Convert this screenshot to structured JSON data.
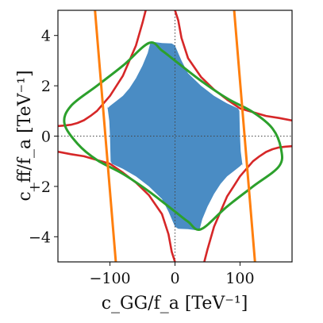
{
  "chart_data": {
    "type": "line",
    "xlabel": "c_GG/f_a [TeV⁻¹]",
    "ylabel": "c_ff/f_a [TeV⁻¹]",
    "xlim": [
      -180,
      180
    ],
    "ylim": [
      -5,
      5
    ],
    "x_ticks": [
      -100,
      0,
      100
    ],
    "x_tick_labels": [
      "−100",
      "0",
      "100"
    ],
    "y_ticks": [
      -4,
      -2,
      0,
      2,
      4
    ],
    "y_tick_labels": [
      "−4",
      "−2",
      "0",
      "2",
      "4"
    ],
    "reference_lines": {
      "x": 0,
      "y": 0,
      "style": "dotted"
    },
    "colors": {
      "region_fill": "#4a8cc4",
      "red": "#d62728",
      "green": "#2ca02c",
      "orange": "#ff7f0e"
    },
    "red_branch_left": [
      [
        -180,
        0.4
      ],
      [
        -170,
        0.42
      ],
      [
        -160,
        0.45
      ],
      [
        -150,
        0.52
      ],
      [
        -140,
        0.63
      ],
      [
        -130,
        0.8
      ],
      [
        -120,
        1.0
      ],
      [
        -110,
        1.3
      ],
      [
        -100,
        1.6
      ],
      [
        -90,
        2.0
      ],
      [
        -80,
        2.4
      ],
      [
        -70,
        3.0
      ],
      [
        -60,
        3.6
      ],
      [
        -50,
        4.5
      ],
      [
        -45,
        5.0
      ]
    ],
    "red_branch_top": [
      [
        0,
        5.0
      ],
      [
        5,
        4.6
      ],
      [
        10,
        3.9
      ],
      [
        20,
        3.1
      ],
      [
        40,
        2.35
      ],
      [
        60,
        1.85
      ],
      [
        80,
        1.45
      ],
      [
        100,
        1.1
      ],
      [
        120,
        0.95
      ],
      [
        140,
        0.8
      ],
      [
        160,
        0.72
      ],
      [
        180,
        0.62
      ]
    ],
    "red_branch_right": [
      [
        180,
        -0.4
      ],
      [
        170,
        -0.42
      ],
      [
        160,
        -0.45
      ],
      [
        150,
        -0.52
      ],
      [
        140,
        -0.63
      ],
      [
        130,
        -0.8
      ],
      [
        120,
        -1.0
      ],
      [
        110,
        -1.3
      ],
      [
        100,
        -1.6
      ],
      [
        90,
        -2.0
      ],
      [
        80,
        -2.4
      ],
      [
        70,
        -3.0
      ],
      [
        60,
        -3.6
      ],
      [
        50,
        -4.5
      ],
      [
        45,
        -5.0
      ]
    ],
    "red_branch_bottom": [
      [
        0,
        -5.0
      ],
      [
        -5,
        -4.6
      ],
      [
        -10,
        -3.9
      ],
      [
        -20,
        -3.1
      ],
      [
        -40,
        -2.35
      ],
      [
        -60,
        -1.85
      ],
      [
        -80,
        -1.45
      ],
      [
        -100,
        -1.1
      ],
      [
        -120,
        -0.95
      ],
      [
        -140,
        -0.8
      ],
      [
        -160,
        -0.72
      ],
      [
        -180,
        -0.62
      ]
    ],
    "green_contour": [
      [
        -40,
        3.7
      ],
      [
        -20,
        3.4
      ],
      [
        0,
        3.0
      ],
      [
        40,
        2.2
      ],
      [
        80,
        1.5
      ],
      [
        120,
        0.95
      ],
      [
        150,
        0.3
      ],
      [
        163,
        -0.5
      ],
      [
        160,
        -1.2
      ],
      [
        120,
        -2.0
      ],
      [
        80,
        -2.8
      ],
      [
        40,
        -3.7
      ],
      [
        20,
        -3.4
      ],
      [
        0,
        -3.0
      ],
      [
        -40,
        -2.2
      ],
      [
        -80,
        -1.5
      ],
      [
        -120,
        -0.95
      ],
      [
        -150,
        -0.3
      ],
      [
        -170,
        0.5
      ],
      [
        -160,
        1.2
      ],
      [
        -120,
        2.0
      ],
      [
        -80,
        2.8
      ]
    ],
    "orange_lines": [
      {
        "points": [
          [
            -123,
            5
          ],
          [
            -91,
            -5
          ]
        ]
      },
      {
        "points": [
          [
            91,
            5
          ],
          [
            123,
            -5
          ]
        ]
      }
    ]
  }
}
